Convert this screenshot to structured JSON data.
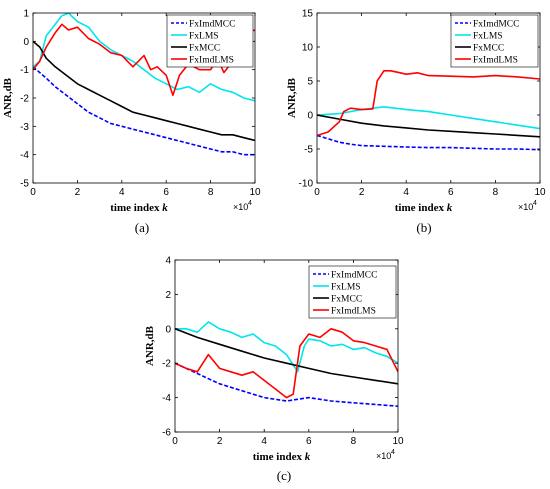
{
  "chart_data": [
    {
      "type": "line",
      "caption": "(a)",
      "xlabel": "time index",
      "xlabel_var": "k",
      "ylabel": "ANR,dB",
      "x_multiplier_base": "×10",
      "x_multiplier_exp": "4",
      "xlim": [
        0,
        10
      ],
      "ylim": [
        -5,
        1
      ],
      "xticks": [
        0,
        2,
        4,
        6,
        8,
        10
      ],
      "yticks": [
        -5,
        -4,
        -3,
        -2,
        -1,
        0,
        1
      ],
      "legend_position": "top-right",
      "series": [
        {
          "name": "FxImdMCC",
          "color": "#0000ff",
          "style": "dashed",
          "x": [
            0,
            0.3,
            0.6,
            1,
            1.5,
            2,
            2.5,
            3,
            3.5,
            4,
            4.5,
            5,
            5.5,
            6,
            6.5,
            7,
            7.5,
            8,
            8.5,
            9,
            9.5,
            10
          ],
          "y": [
            -0.9,
            -1.1,
            -1.3,
            -1.6,
            -1.9,
            -2.2,
            -2.5,
            -2.7,
            -2.9,
            -3.0,
            -3.1,
            -3.2,
            -3.3,
            -3.4,
            -3.5,
            -3.6,
            -3.7,
            -3.8,
            -3.9,
            -3.9,
            -4.0,
            -4.0
          ]
        },
        {
          "name": "FxLMS",
          "color": "#00e5ee",
          "style": "solid",
          "x": [
            0,
            0.3,
            0.6,
            1,
            1.3,
            1.6,
            2,
            2.5,
            3,
            3.5,
            4,
            4.5,
            5,
            5.5,
            6,
            6.5,
            7,
            7.5,
            8,
            8.5,
            9,
            9.5,
            10
          ],
          "y": [
            -0.9,
            -0.7,
            0.2,
            0.6,
            0.9,
            1.0,
            0.7,
            0.5,
            0.0,
            -0.3,
            -0.5,
            -0.7,
            -1.0,
            -1.3,
            -1.5,
            -1.7,
            -1.6,
            -1.8,
            -1.5,
            -1.7,
            -1.8,
            -2.0,
            -2.1
          ]
        },
        {
          "name": "FxMCC",
          "color": "#000000",
          "style": "solid",
          "x": [
            0,
            0.3,
            0.6,
            1,
            1.5,
            2,
            2.5,
            3,
            3.5,
            4,
            4.5,
            5,
            5.5,
            6,
            6.5,
            7,
            7.5,
            8,
            8.5,
            9,
            9.5,
            10
          ],
          "y": [
            0.0,
            -0.2,
            -0.6,
            -0.9,
            -1.2,
            -1.5,
            -1.7,
            -1.9,
            -2.1,
            -2.3,
            -2.5,
            -2.6,
            -2.7,
            -2.8,
            -2.9,
            -3.0,
            -3.1,
            -3.2,
            -3.3,
            -3.3,
            -3.4,
            -3.5
          ]
        },
        {
          "name": "FxImdLMS",
          "color": "#ff0000",
          "style": "solid",
          "x": [
            0,
            0.3,
            0.6,
            1,
            1.3,
            1.6,
            2,
            2.5,
            3,
            3.5,
            4,
            4.5,
            5,
            5.3,
            5.6,
            6,
            6.3,
            6.6,
            7,
            7.5,
            8,
            8.3,
            8.6,
            9,
            9.3,
            9.6,
            10
          ],
          "y": [
            -1.0,
            -0.7,
            -0.2,
            0.3,
            0.6,
            0.4,
            0.5,
            0.1,
            -0.1,
            -0.4,
            -0.5,
            -0.9,
            -0.5,
            -1.0,
            -0.9,
            -1.2,
            -1.9,
            -1.2,
            -0.8,
            -1.0,
            -1.0,
            -0.6,
            -1.1,
            -0.7,
            0.8,
            0.3,
            0.4
          ]
        }
      ]
    },
    {
      "type": "line",
      "caption": "(b)",
      "xlabel": "time index",
      "xlabel_var": "k",
      "ylabel": "ANR,dB",
      "x_multiplier_base": "×10",
      "x_multiplier_exp": "4",
      "xlim": [
        0,
        10
      ],
      "ylim": [
        -10,
        15
      ],
      "xticks": [
        0,
        2,
        4,
        6,
        8,
        10
      ],
      "yticks": [
        -10,
        -5,
        0,
        5,
        10,
        15
      ],
      "legend_position": "top-right",
      "series": [
        {
          "name": "FxImdMCC",
          "color": "#0000ff",
          "style": "dashed",
          "x": [
            0,
            0.5,
            1,
            1.5,
            2,
            3,
            4,
            5,
            6,
            7,
            8,
            9,
            10
          ],
          "y": [
            -3.0,
            -3.5,
            -4.0,
            -4.3,
            -4.5,
            -4.6,
            -4.7,
            -4.8,
            -4.8,
            -4.9,
            -5.0,
            -5.0,
            -5.1
          ]
        },
        {
          "name": "FxLMS",
          "color": "#00e5ee",
          "style": "solid",
          "x": [
            0,
            0.5,
            1,
            1.5,
            2,
            2.5,
            3,
            3.5,
            4,
            5,
            6,
            7,
            8,
            9,
            10
          ],
          "y": [
            0.0,
            0.1,
            0.2,
            0.5,
            0.8,
            1.0,
            1.2,
            1.0,
            0.8,
            0.5,
            0.0,
            -0.5,
            -1.0,
            -1.5,
            -2.0
          ]
        },
        {
          "name": "FxMCC",
          "color": "#000000",
          "style": "solid",
          "x": [
            0,
            1,
            2,
            3,
            4,
            5,
            6,
            7,
            8,
            9,
            10
          ],
          "y": [
            0.0,
            -0.6,
            -1.2,
            -1.6,
            -1.9,
            -2.2,
            -2.4,
            -2.6,
            -2.8,
            -3.0,
            -3.2
          ]
        },
        {
          "name": "FxImdLMS",
          "color": "#ff0000",
          "style": "solid",
          "x": [
            0,
            0.5,
            1,
            1.2,
            1.5,
            2,
            2.5,
            2.7,
            3,
            3.3,
            3.6,
            4,
            4.5,
            5,
            6,
            7,
            8,
            9,
            10
          ],
          "y": [
            -3.0,
            -2.5,
            -1.0,
            0.5,
            1.0,
            0.8,
            0.9,
            5.0,
            6.5,
            6.5,
            6.3,
            6.0,
            6.2,
            5.8,
            5.7,
            5.6,
            5.8,
            5.6,
            5.3
          ]
        }
      ]
    },
    {
      "type": "line",
      "caption": "(c)",
      "xlabel": "time index",
      "xlabel_var": "k",
      "ylabel": "ANR,dB",
      "x_multiplier_base": "×10",
      "x_multiplier_exp": "4",
      "xlim": [
        0,
        10
      ],
      "ylim": [
        -6,
        4
      ],
      "xticks": [
        0,
        2,
        4,
        6,
        8,
        10
      ],
      "yticks": [
        -6,
        -4,
        -2,
        0,
        2,
        4
      ],
      "legend_position": "top-right",
      "series": [
        {
          "name": "FxImdMCC",
          "color": "#0000ff",
          "style": "dashed",
          "x": [
            0,
            0.5,
            1,
            1.5,
            2,
            2.5,
            3,
            3.5,
            4,
            4.5,
            5,
            5.5,
            6,
            7,
            8,
            9,
            10
          ],
          "y": [
            -2.0,
            -2.3,
            -2.6,
            -2.9,
            -3.2,
            -3.4,
            -3.6,
            -3.8,
            -4.0,
            -4.1,
            -4.2,
            -4.1,
            -4.0,
            -4.2,
            -4.3,
            -4.4,
            -4.5
          ]
        },
        {
          "name": "FxLMS",
          "color": "#00e5ee",
          "style": "solid",
          "x": [
            0,
            0.5,
            1,
            1.5,
            2,
            2.5,
            3,
            3.5,
            4,
            4.5,
            5,
            5.5,
            5.8,
            6,
            6.5,
            7,
            7.5,
            8,
            8.5,
            9,
            9.5,
            10
          ],
          "y": [
            0.0,
            0.0,
            -0.2,
            0.4,
            0.0,
            -0.2,
            -0.5,
            -0.3,
            -0.8,
            -1.0,
            -1.5,
            -2.5,
            -1.0,
            -0.6,
            -0.7,
            -1.0,
            -0.9,
            -1.2,
            -1.1,
            -1.4,
            -1.6,
            -2.0
          ]
        },
        {
          "name": "FxMCC",
          "color": "#000000",
          "style": "solid",
          "x": [
            0,
            1,
            2,
            3,
            4,
            5,
            6,
            7,
            8,
            9,
            10
          ],
          "y": [
            0.0,
            -0.5,
            -0.9,
            -1.3,
            -1.7,
            -2.0,
            -2.3,
            -2.6,
            -2.8,
            -3.0,
            -3.2
          ]
        },
        {
          "name": "FxImdLMS",
          "color": "#ff0000",
          "style": "solid",
          "x": [
            0,
            0.5,
            1,
            1.5,
            2,
            2.5,
            3,
            3.5,
            4,
            4.5,
            5,
            5.3,
            5.6,
            6,
            6.5,
            7,
            7.5,
            8,
            8.5,
            9,
            9.5,
            10
          ],
          "y": [
            -2.0,
            -2.3,
            -2.5,
            -1.5,
            -2.3,
            -2.5,
            -2.7,
            -2.5,
            -3.0,
            -3.5,
            -4.0,
            -3.8,
            -1.0,
            -0.3,
            -0.5,
            0.0,
            -0.2,
            -0.7,
            -0.8,
            -1.0,
            -1.2,
            -2.5
          ]
        }
      ]
    }
  ]
}
